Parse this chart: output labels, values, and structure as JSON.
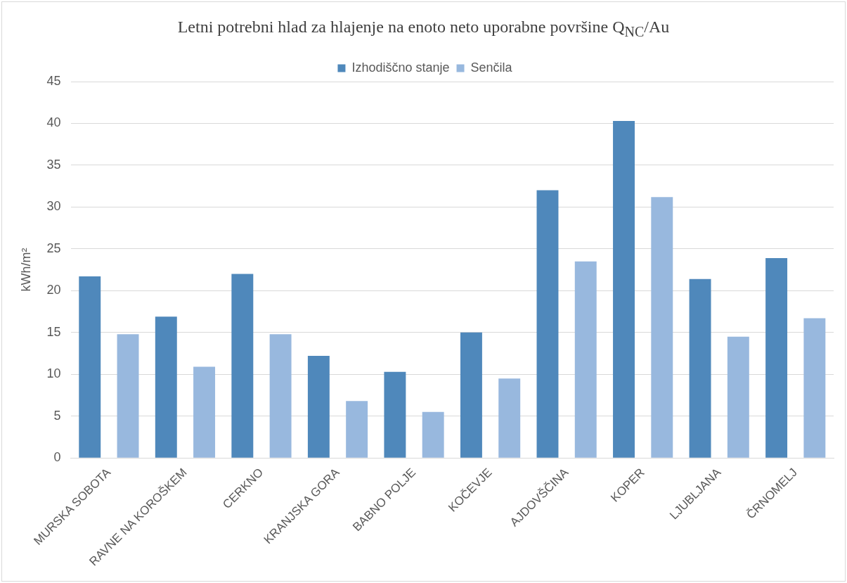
{
  "chart_data": {
    "type": "bar",
    "title": "Letni potrebni hlad za hlajenje na enoto neto uporabne površine  Q$_{NC}$/Au",
    "ylabel": "kWh/m²",
    "categories": [
      "MURSKA SOBOTA",
      "RAVNE NA KOROŠKEM",
      "CERKNO",
      "KRANJSKA GORA",
      "BABNO POLJE",
      "KOČEVJE",
      "AJDOVŠČINA",
      "KOPER",
      "LJUBLJANA",
      "ČRNOMELJ"
    ],
    "series": [
      {
        "name": "Izhodiščno stanje",
        "color": "#4f88bb",
        "values": [
          21.7,
          16.9,
          22.0,
          12.2,
          10.3,
          15.0,
          32.0,
          40.3,
          21.4,
          23.9
        ]
      },
      {
        "name": "Senčila",
        "color": "#98b8de",
        "values": [
          14.8,
          10.9,
          14.8,
          6.8,
          5.5,
          9.5,
          23.5,
          31.2,
          14.5,
          16.7
        ]
      }
    ],
    "ylim": [
      0,
      45
    ],
    "yticks": [
      0,
      5,
      10,
      15,
      20,
      25,
      30,
      35,
      40,
      45
    ],
    "grid": "y",
    "legend": "top"
  }
}
